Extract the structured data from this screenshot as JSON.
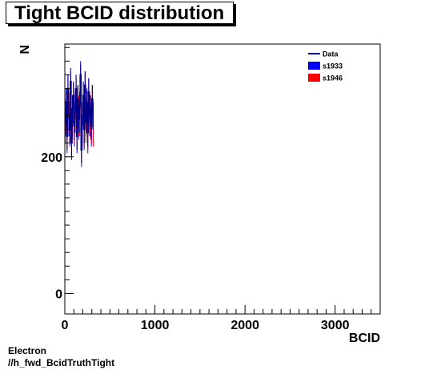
{
  "chart_data": {
    "type": "bar",
    "title": "Tight BCID distribution",
    "xlabel": "BCID",
    "ylabel": "N",
    "xlim": [
      0,
      3500
    ],
    "ylim": [
      -30,
      365
    ],
    "x_ticks": [
      0,
      1000,
      2000,
      3000
    ],
    "y_ticks": [
      0,
      200
    ],
    "x_tick_labels": [
      "0",
      "1000",
      "2000",
      "3000"
    ],
    "y_tick_labels": [
      "0",
      "200"
    ],
    "legend_position": "top-right",
    "bin_width": 10,
    "x": [
      0,
      10,
      20,
      30,
      40,
      50,
      60,
      70,
      80,
      90,
      100,
      110,
      120,
      130,
      140,
      150,
      160,
      170,
      180,
      190,
      200,
      210,
      220,
      230,
      240,
      250,
      260,
      270,
      280,
      290,
      300,
      310
    ],
    "series": [
      {
        "name": "Data",
        "style": "line",
        "color": "#00008b",
        "values": [
          250,
          280,
          230,
          300,
          260,
          240,
          310,
          220,
          270,
          290,
          245,
          265,
          300,
          230,
          285,
          255,
          275,
          320,
          210,
          260,
          290,
          240,
          305,
          250,
          280,
          235,
          295,
          260,
          270,
          245,
          285,
          260
        ]
      },
      {
        "name": "s1933",
        "style": "fill",
        "color": "#0000ff",
        "values": [
          255,
          275,
          240,
          295,
          265,
          250,
          300,
          230,
          265,
          285,
          250,
          270,
          295,
          240,
          280,
          260,
          270,
          310,
          220,
          255,
          285,
          245,
          300,
          255,
          275,
          240,
          290,
          265,
          265,
          250,
          280,
          255
        ]
      },
      {
        "name": "s1946",
        "style": "fill",
        "color": "#ff0000",
        "values": [
          260,
          270,
          245,
          290,
          270,
          255,
          295,
          235,
          260,
          280,
          255,
          275,
          290,
          245,
          275,
          265,
          265,
          305,
          225,
          250,
          280,
          250,
          295,
          260,
          270,
          245,
          285,
          270,
          260,
          255,
          275,
          250
        ]
      }
    ]
  },
  "footer": {
    "line1": "Electron",
    "line2": "//h_fwd_BcidTruthTight"
  }
}
